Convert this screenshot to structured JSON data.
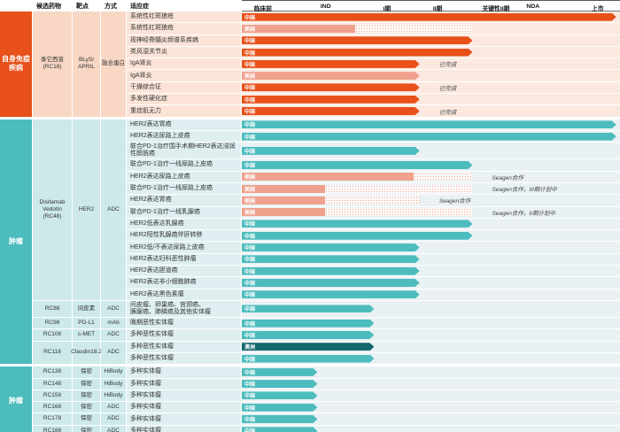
{
  "columns": {
    "candidate": "候选药物",
    "target": "靶点",
    "modality": "方式",
    "indication": "适应症"
  },
  "colors": {
    "autoimmune": "#E8511A",
    "autoimmune_light": "#F0A18D",
    "oncology": "#4CBCBD",
    "oncology_dark": "#15666D",
    "hatch_dot": "#F2AD9B"
  },
  "chart_data": {
    "type": "bar",
    "subtype": "pipeline-gantt",
    "orientation": "horizontal",
    "phases": [
      {
        "label": "临床前",
        "pos": 5.6
      },
      {
        "label": "IND",
        "pos": 22.2
      },
      {
        "label": "I期",
        "pos": 38.4
      },
      {
        "label": "II期",
        "pos": 51.8
      },
      {
        "label": "关键性II期",
        "pos": 67.2
      },
      {
        "label": "NDA",
        "pos": 77.0
      },
      {
        "label": "上市",
        "pos": 94.1
      }
    ],
    "sections": [
      {
        "category": "自身免疫疾病",
        "theme": "auto",
        "groups": [
          {
            "drug": "泰它西普\n(RC18)",
            "target": "BLyS/\nAPRIL",
            "modality": "融合蛋白",
            "rows": [
              {
                "indication": "系统性红斑狼疮",
                "region": "中国",
                "bar": "cn",
                "solid": 99,
                "hatch": 0,
                "note": ""
              },
              {
                "indication": "系统性红斑狼疮",
                "region": "美国",
                "bar": "us",
                "solid": 30,
                "hatch": 61,
                "note": ""
              },
              {
                "indication": "视神经脊髓炎频谱系疾病",
                "region": "中国",
                "bar": "cn",
                "solid": 61,
                "hatch": 0,
                "note": ""
              },
              {
                "indication": "类风湿关节炎",
                "region": "中国",
                "bar": "cn",
                "solid": 61,
                "hatch": 0,
                "note": ""
              },
              {
                "indication": "IgA肾炎",
                "region": "中国",
                "bar": "cn",
                "solid": 47,
                "hatch": 0,
                "note": "已完成"
              },
              {
                "indication": "IgA肾炎",
                "region": "美国",
                "bar": "us",
                "solid": 47,
                "hatch": 0,
                "note": ""
              },
              {
                "indication": "干燥综合征",
                "region": "中国",
                "bar": "cn",
                "solid": 47,
                "hatch": 0,
                "note": "已完成"
              },
              {
                "indication": "多发性硬化症",
                "region": "中国",
                "bar": "cn",
                "solid": 47,
                "hatch": 0,
                "note": ""
              },
              {
                "indication": "重症肌无力",
                "region": "中国",
                "bar": "cn",
                "solid": 47,
                "hatch": 0,
                "note": "已完成"
              }
            ]
          }
        ]
      },
      {
        "category": "肿瘤",
        "theme": "onco",
        "groups": [
          {
            "drug": "Disitamab\nVedotin\n(RC48)",
            "target": "HER2",
            "modality": "ADC",
            "rows": [
              {
                "indication": "HER2表达胃癌",
                "region": "中国",
                "bar": "cn",
                "solid": 99,
                "hatch": 0,
                "note": ""
              },
              {
                "indication": "HER2表达尿路上皮癌",
                "region": "中国",
                "bar": "cn",
                "solid": 99,
                "hatch": 0,
                "note": ""
              },
              {
                "indication": "联合PD-1治疗围手术期HER2表达浸润性膀胱癌",
                "region": "中国",
                "bar": "cn",
                "solid": 47,
                "hatch": 0,
                "note": ""
              },
              {
                "indication": "联合PD-1治疗一线尿路上皮癌",
                "region": "中国",
                "bar": "cn",
                "solid": 61,
                "hatch": 0,
                "note": ""
              },
              {
                "indication": "HER2表达尿路上皮癌",
                "region": "美国",
                "bar": "us",
                "solid": 45.5,
                "hatch": 61,
                "note": "Seagen合作"
              },
              {
                "indication": "联合PD-1治疗一线尿路上皮癌",
                "region": "美国",
                "bar": "us",
                "solid": 22,
                "hatch": 61,
                "note": "Seagen合作，III期计划中"
              },
              {
                "indication": "HER2表达胃癌",
                "region": "美国",
                "bar": "us",
                "solid": 22,
                "hatch": 47,
                "note": "Seagen合作"
              },
              {
                "indication": "联合PD-1治疗一线乳腺癌",
                "region": "美国",
                "bar": "us",
                "solid": 22,
                "hatch": 61,
                "note": "Seagen合作，II期计划中"
              },
              {
                "indication": "HER2低表达乳腺癌",
                "region": "中国",
                "bar": "cn",
                "solid": 61,
                "hatch": 0,
                "note": ""
              },
              {
                "indication": "HER2阳性乳腺癌伴肝转移",
                "region": "中国",
                "bar": "cn",
                "solid": 61,
                "hatch": 0,
                "note": ""
              },
              {
                "indication": "HER2低/不表达尿路上皮癌",
                "region": "中国",
                "bar": "cn",
                "solid": 47,
                "hatch": 0,
                "note": ""
              },
              {
                "indication": "HER2表达妇科恶性肿瘤",
                "region": "中国",
                "bar": "cn",
                "solid": 47,
                "hatch": 0,
                "note": ""
              },
              {
                "indication": "HER2表达胆道癌",
                "region": "中国",
                "bar": "cn",
                "solid": 47,
                "hatch": 0,
                "note": ""
              },
              {
                "indication": "HER2表达非小细胞肺癌",
                "region": "中国",
                "bar": "cn",
                "solid": 47,
                "hatch": 0,
                "note": ""
              },
              {
                "indication": "HER2表达黑色素瘤",
                "region": "中国",
                "bar": "cn",
                "solid": 47,
                "hatch": 0,
                "note": ""
              }
            ]
          },
          {
            "drug": "RC88",
            "target": "间皮素",
            "modality": "ADC",
            "rows": [
              {
                "indication": "间皮瘤、卵巢癌、宫颈癌、\n胰腺癌、肺鳞癌及其他实体瘤",
                "region": "中国",
                "bar": "cn",
                "solid": 35,
                "hatch": 0,
                "note": ""
              }
            ]
          },
          {
            "drug": "RC98",
            "target": "PD-L1",
            "modality": "mAb",
            "rows": [
              {
                "indication": "晚期恶性实体瘤",
                "region": "中国",
                "bar": "cn",
                "solid": 35,
                "hatch": 0,
                "note": ""
              }
            ]
          },
          {
            "drug": "RC108",
            "target": "c-MET",
            "modality": "ADC",
            "rows": [
              {
                "indication": "多种恶性实体瘤",
                "region": "中国",
                "bar": "cn",
                "solid": 35,
                "hatch": 0,
                "note": ""
              }
            ]
          },
          {
            "drug": "RC118",
            "target": "Claudin18.2",
            "modality": "ADC",
            "rows": [
              {
                "indication": "多种恶性实体瘤",
                "region": "澳洲",
                "bar": "au",
                "solid": 35,
                "hatch": 0,
                "note": ""
              },
              {
                "indication": "多种恶性实体瘤",
                "region": "中国",
                "bar": "cn",
                "solid": 35,
                "hatch": 0,
                "note": ""
              }
            ]
          }
        ]
      },
      {
        "category": "肿瘤",
        "theme": "onco",
        "groups": [
          {
            "drug": "RC138",
            "target": "保密",
            "modality": "HiBody",
            "rows": [
              {
                "indication": "多种实体瘤",
                "region": "中国",
                "bar": "cn",
                "solid": 20,
                "hatch": 0,
                "note": ""
              }
            ]
          },
          {
            "drug": "RC148",
            "target": "保密",
            "modality": "HiBody",
            "rows": [
              {
                "indication": "多种实体瘤",
                "region": "中国",
                "bar": "cn",
                "solid": 20,
                "hatch": 0,
                "note": ""
              }
            ]
          },
          {
            "drug": "RC158",
            "target": "保密",
            "modality": "HiBody",
            "rows": [
              {
                "indication": "多种实体瘤",
                "region": "中国",
                "bar": "cn",
                "solid": 20,
                "hatch": 0,
                "note": ""
              }
            ]
          },
          {
            "drug": "RC168",
            "target": "保密",
            "modality": "ADC",
            "rows": [
              {
                "indication": "多种实体瘤",
                "region": "中国",
                "bar": "cn",
                "solid": 20,
                "hatch": 0,
                "note": ""
              }
            ]
          },
          {
            "drug": "RC178",
            "target": "保密",
            "modality": "ADC",
            "rows": [
              {
                "indication": "多种实体瘤",
                "region": "中国",
                "bar": "cn",
                "solid": 20,
                "hatch": 0,
                "note": ""
              }
            ]
          },
          {
            "drug": "RC188",
            "target": "保密",
            "modality": "ADC",
            "rows": [
              {
                "indication": "多种实体瘤",
                "region": "中国",
                "bar": "cn",
                "solid": 20,
                "hatch": 0,
                "note": ""
              }
            ]
          }
        ]
      }
    ]
  }
}
